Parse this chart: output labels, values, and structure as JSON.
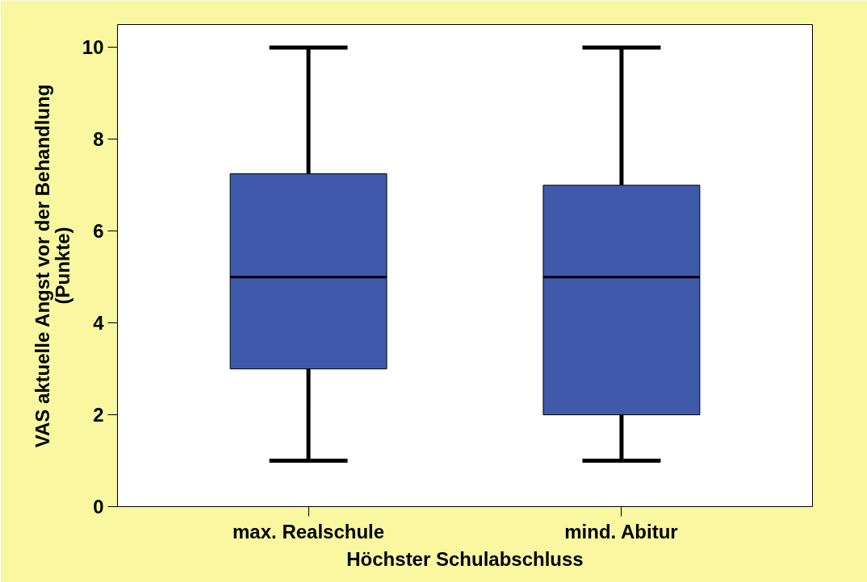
{
  "chart_data": {
    "type": "box",
    "categories": [
      "max. Realschule",
      "mind. Abitur"
    ],
    "xlabel": "Höchster Schulabschluss",
    "ylabel": "VAS aktuelle Angst vor der Behandlung\n(Punkte)",
    "ylim": [
      0,
      10.5
    ],
    "yticks": [
      0,
      2,
      4,
      6,
      8,
      10
    ],
    "grid": false,
    "series": [
      {
        "color": "#3f59ab",
        "boxes": [
          {
            "low": 1,
            "q1": 3,
            "median": 5,
            "q3": 7.25,
            "high": 10
          },
          {
            "low": 1,
            "q1": 2,
            "median": 5,
            "q3": 7,
            "high": 10
          }
        ]
      }
    ]
  }
}
